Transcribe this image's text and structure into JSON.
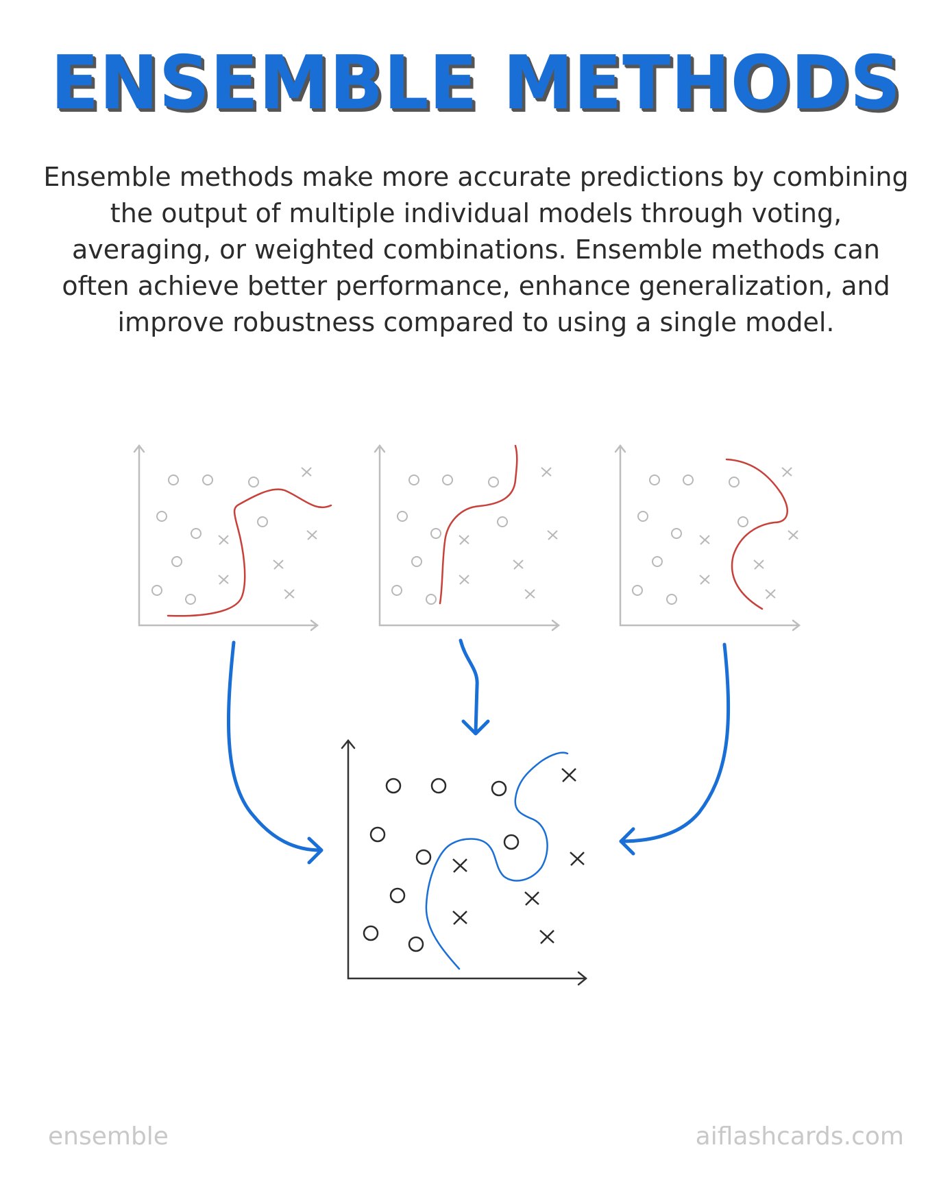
{
  "title": "Ensemble Methods",
  "description": "Ensemble methods make more accurate predictions by combining the output of multiple individual models through voting, averaging, or weighted combinations. Ensemble methods can often achieve better performance, enhance generalization, and improve robustness compared to using a single model.",
  "footer": {
    "left": "ensemble",
    "right": "aiflashcards.com"
  },
  "colors": {
    "title": "#1a6fd6",
    "text": "#2b2b2b",
    "individual_boundary": "#c8403a",
    "ensemble_boundary": "#1a6fd6",
    "arrow": "#1a6fd6",
    "faded_axis": "#bdbdbd",
    "dark_axis": "#333333"
  },
  "icons": [
    "circle-marker",
    "cross-marker",
    "curved-arrow-icon"
  ]
}
